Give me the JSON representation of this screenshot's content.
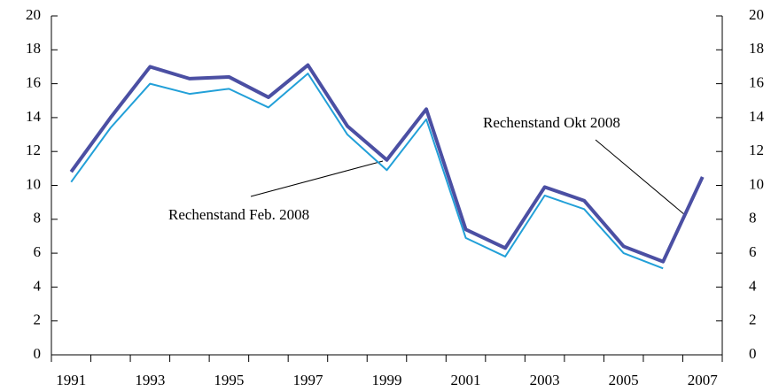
{
  "chart_data": {
    "type": "line",
    "categories": [
      "1991",
      null,
      "1993",
      null,
      "1995",
      null,
      "1997",
      null,
      "1999",
      null,
      "2001",
      null,
      "2003",
      null,
      "2005",
      null,
      "2007"
    ],
    "series": [
      {
        "name": "Rechenstand Feb. 2008",
        "color": "#22a0d8",
        "width": 2,
        "values": [
          10.2,
          13.4,
          16.0,
          15.4,
          15.7,
          14.6,
          16.6,
          13.0,
          10.9,
          13.9,
          6.9,
          5.8,
          9.4,
          8.6,
          6.0,
          5.1,
          null
        ]
      },
      {
        "name": "Rechenstand Okt 2008",
        "color": "#4b4fa3",
        "width": 4,
        "values": [
          10.8,
          14.0,
          17.0,
          16.3,
          16.4,
          15.2,
          17.1,
          13.5,
          11.5,
          14.5,
          7.4,
          6.3,
          9.9,
          9.1,
          6.4,
          5.5,
          10.5
        ]
      }
    ],
    "ylim": [
      0,
      20
    ],
    "yticks": [
      0,
      2,
      4,
      6,
      8,
      10,
      12,
      14,
      16,
      18,
      20
    ],
    "y2lim": [
      0,
      20
    ],
    "y2ticks": [
      0,
      2,
      4,
      6,
      8,
      10,
      12,
      14,
      16,
      18,
      20
    ]
  }
}
